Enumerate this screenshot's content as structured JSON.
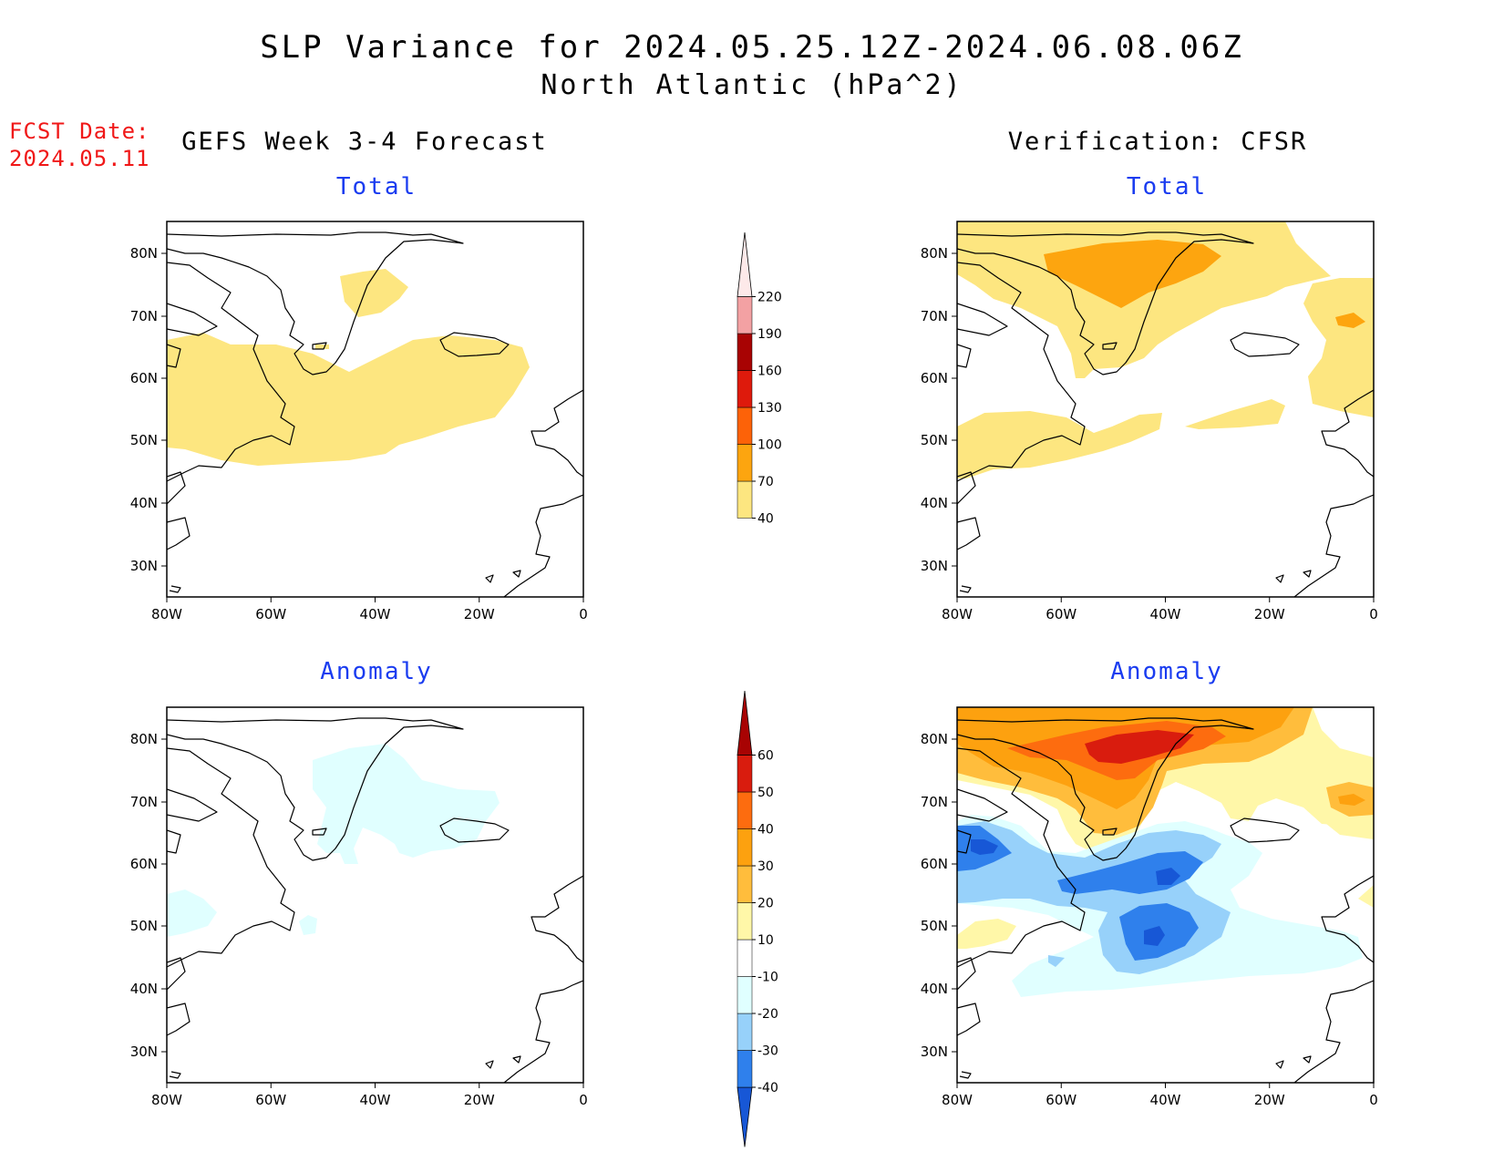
{
  "title_line1": "SLP Variance for 2024.05.25.12Z-2024.06.08.06Z",
  "title_line2": "North Atlantic (hPa^2)",
  "fcst_label": "FCST Date:",
  "fcst_date": "2024.05.11",
  "columns": {
    "left": "GEFS Week 3-4 Forecast",
    "right": "Verification: CFSR"
  },
  "panels": {
    "top_left": "Total",
    "top_right": "Total",
    "bottom_left": "Anomaly",
    "bottom_right": "Anomaly"
  },
  "axes": {
    "lon_ticks": [
      "80W",
      "60W",
      "40W",
      "20W",
      "0"
    ],
    "lat_ticks": [
      "80N",
      "70N",
      "60N",
      "50N",
      "40N",
      "30N"
    ]
  },
  "colorbars": {
    "total": {
      "levels": [
        "40",
        "70",
        "100",
        "130",
        "160",
        "190",
        "220"
      ],
      "colors": [
        "#fde680",
        "#fda50f",
        "#fd6208",
        "#de1a0c",
        "#a80303",
        "#f3a1a3",
        "#fde9e9"
      ]
    },
    "anomaly": {
      "levels": [
        "-40",
        "-30",
        "-20",
        "-10",
        "10",
        "20",
        "30",
        "40",
        "50",
        "60"
      ],
      "colors": [
        "#1757d6",
        "#2f80ec",
        "#97d1fa",
        "#e0ffff",
        "#ffffff",
        "#fff7a8",
        "#ffbd3c",
        "#fda10f",
        "#fd6c0f",
        "#d91c0e",
        "#a80303"
      ]
    }
  },
  "field_colors": {
    "t40": "#fde680",
    "t70": "#fda50f",
    "a_p10": "#fff7a8",
    "a_p20": "#ffbd3c",
    "a_p30": "#fda10f",
    "a_p40": "#fd6c0f",
    "a_p50": "#d91c0e",
    "a_m10": "#e0ffff",
    "a_m20": "#97d1fa",
    "a_m30": "#2f80ec",
    "a_m40": "#1757d6"
  }
}
